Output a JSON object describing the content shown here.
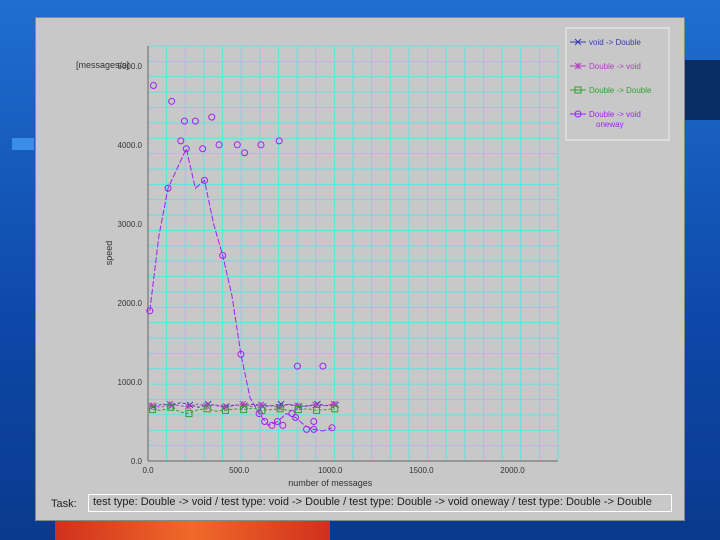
{
  "chart_data": {
    "type": "line",
    "ylabel": "speed",
    "yunit": "[messages/s]",
    "xlabel": "number of messages",
    "xlim": [
      0,
      2250
    ],
    "ylim": [
      0,
      5250
    ],
    "xticks": [
      "0.0",
      "500.0",
      "1000.0",
      "1500.0",
      "2000.0"
    ],
    "xtick_values": [
      0,
      500,
      1000,
      1500,
      2000
    ],
    "yticks": [
      "0.0",
      "1000.0",
      "2000.0",
      "3000.0",
      "4000.0",
      "5000.0"
    ],
    "ytick_values": [
      0,
      1000,
      2000,
      3000,
      4000,
      5000
    ],
    "grid": true,
    "legend_position": "top-right",
    "series": [
      {
        "name": "void -> Double",
        "color": "#3a3ab0",
        "marker": "x",
        "x": [
          30,
          80,
          130,
          180,
          230,
          280,
          330,
          380,
          430,
          480,
          530,
          580,
          630,
          680,
          730,
          780,
          830,
          880,
          930,
          980,
          1030
        ],
        "y": [
          690,
          720,
          700,
          740,
          710,
          680,
          720,
          700,
          690,
          710,
          700,
          720,
          690,
          700,
          720,
          710,
          690,
          700,
          720,
          700,
          710
        ]
      },
      {
        "name": "Double -> void",
        "color": "#b040c0",
        "marker": "star",
        "x": [
          20,
          70,
          120,
          170,
          220,
          270,
          320,
          370,
          420,
          470,
          520,
          570,
          620,
          670,
          720,
          770,
          820,
          870,
          920,
          970,
          1020
        ],
        "y": [
          700,
          680,
          720,
          700,
          690,
          720,
          700,
          710,
          680,
          700,
          720,
          690,
          710,
          700,
          680,
          720,
          700,
          690,
          710,
          700,
          720
        ]
      },
      {
        "name": "Double -> Double",
        "color": "#30a030",
        "marker": "square",
        "x": [
          25,
          75,
          125,
          175,
          225,
          275,
          325,
          375,
          425,
          475,
          525,
          575,
          625,
          675,
          725,
          775,
          825,
          875,
          925,
          975,
          1025
        ],
        "y": [
          650,
          640,
          680,
          620,
          600,
          650,
          660,
          630,
          640,
          660,
          650,
          670,
          640,
          650,
          660,
          640,
          650,
          660,
          640,
          650,
          660
        ]
      },
      {
        "name": "Double -> void oneway",
        "color": "#a020f0",
        "marker": "circle",
        "x": [
          10,
          60,
          110,
          160,
          210,
          260,
          310,
          360,
          410,
          460,
          510,
          560,
          610,
          660,
          710,
          760,
          810,
          860,
          910,
          960,
          1010
        ],
        "y": [
          1900,
          2850,
          3450,
          3700,
          3950,
          3450,
          3550,
          3000,
          2600,
          2100,
          1350,
          800,
          600,
          450,
          500,
          600,
          550,
          450,
          400,
          380,
          420
        ]
      },
      {
        "name": "Double -> void oneway (points)",
        "color": "#a020f0",
        "marker": "circle",
        "points_only": true,
        "x": [
          30,
          130,
          180,
          200,
          260,
          300,
          350,
          390,
          490,
          530,
          620,
          720,
          820,
          960,
          640,
          680,
          740,
          790,
          870,
          910
        ],
        "y": [
          4750,
          4550,
          4050,
          4300,
          4300,
          3950,
          4350,
          4000,
          4000,
          3900,
          4000,
          4050,
          1200,
          1200,
          500,
          450,
          450,
          600,
          400,
          500
        ]
      }
    ]
  },
  "legend": {
    "items": [
      {
        "label": "void -> Double",
        "color": "#3a3ab0",
        "marker": "x"
      },
      {
        "label": "Double -> void",
        "color": "#b040c0",
        "marker": "star"
      },
      {
        "label": "Double -> Double",
        "color": "#30a030",
        "marker": "square"
      },
      {
        "label": "Double -> void oneway",
        "color": "#a020f0",
        "marker": "circle"
      }
    ]
  },
  "task": {
    "label": "Task:",
    "value": "test type: Double -> void / test type: void -> Double / test type: Double -> void oneway / test type: Double -> Double"
  },
  "colors": {
    "grid": "#4be8e8",
    "background": "#c8c8c8"
  }
}
